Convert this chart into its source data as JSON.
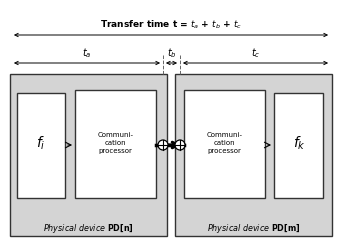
{
  "fig_width": 3.42,
  "fig_height": 2.49,
  "dpi": 100,
  "bg_color": "#ffffff",
  "gray_box_color": "#d4d4d4",
  "white_box_color": "#ffffff",
  "comm_proc_label": "Communi-\ncation\nprocessor",
  "pd_n_italic": "Physical device ",
  "pd_n_bold": "PD[n]",
  "pd_m_italic": "Physical device ",
  "pd_m_bold": "PD[m]"
}
